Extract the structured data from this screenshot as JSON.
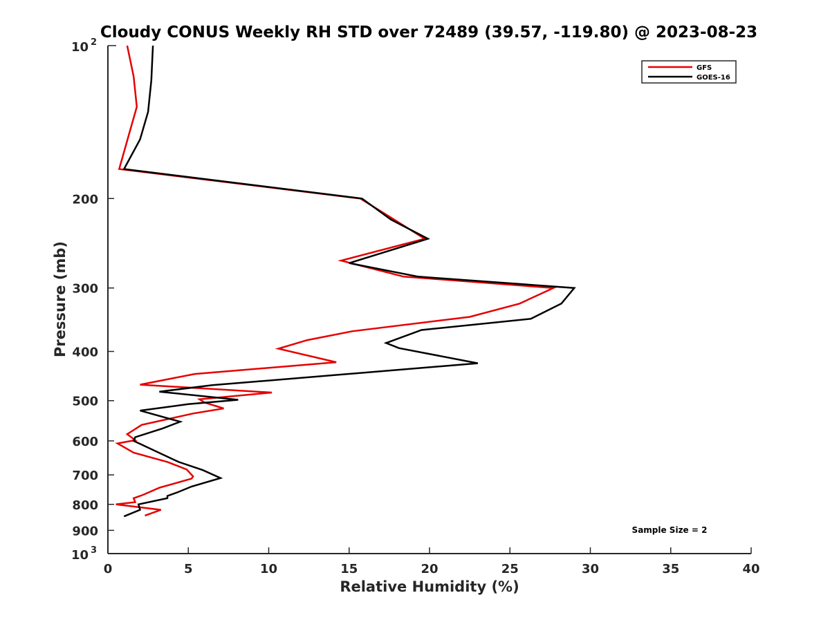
{
  "chart_data": {
    "type": "line",
    "title": "Cloudy CONUS Weekly RH STD over 72489 (39.57, -119.80) @ 2023-08-23",
    "xlabel": "Relative Humidity (%)",
    "ylabel": "Pressure (mb)",
    "xlim": [
      0,
      40
    ],
    "ylim": [
      100,
      1000
    ],
    "y_scale": "log",
    "y_reversed": true,
    "grid": false,
    "legend_position": "top-right",
    "x_ticks": [
      0,
      5,
      10,
      15,
      20,
      25,
      30,
      35,
      40
    ],
    "x_tick_labels": [
      "0",
      "5",
      "10",
      "15",
      "20",
      "25",
      "30",
      "35",
      "40"
    ],
    "y_ticks": [
      200,
      300,
      400,
      500,
      600,
      700,
      800,
      900
    ],
    "y_tick_labels": [
      "200",
      "300",
      "400",
      "500",
      "600",
      "700",
      "800",
      "900"
    ],
    "y_decade_ticks": [
      {
        "value": 100,
        "base": "10",
        "exp": "2"
      },
      {
        "value": 1000,
        "base": "10",
        "exp": "3"
      }
    ],
    "annotation": "Sample Size = 2",
    "series": [
      {
        "name": "GFS",
        "color": "#e60000",
        "points": [
          [
            1.2,
            100
          ],
          [
            1.6,
            115
          ],
          [
            1.8,
            132
          ],
          [
            1.3,
            150
          ],
          [
            0.7,
            175
          ],
          [
            15.7,
            200
          ],
          [
            17.6,
            218
          ],
          [
            19.7,
            240
          ],
          [
            14.5,
            265
          ],
          [
            18.4,
            285
          ],
          [
            27.7,
            300
          ],
          [
            25.6,
            322
          ],
          [
            22.5,
            342
          ],
          [
            15.2,
            365
          ],
          [
            12.4,
            380
          ],
          [
            10.6,
            395
          ],
          [
            14.2,
            420
          ],
          [
            5.4,
            443
          ],
          [
            2.0,
            465
          ],
          [
            10.2,
            482
          ],
          [
            5.7,
            497
          ],
          [
            6.0,
            504
          ],
          [
            7.2,
            518
          ],
          [
            5.3,
            530
          ],
          [
            2.1,
            558
          ],
          [
            1.2,
            582
          ],
          [
            1.7,
            598
          ],
          [
            0.6,
            607
          ],
          [
            1.6,
            633
          ],
          [
            3.7,
            660
          ],
          [
            4.9,
            683
          ],
          [
            5.3,
            705
          ],
          [
            5.2,
            712
          ],
          [
            3.2,
            742
          ],
          [
            2.2,
            766
          ],
          [
            1.6,
            778
          ],
          [
            1.7,
            792
          ],
          [
            0.5,
            800
          ],
          [
            3.3,
            820
          ],
          [
            2.3,
            842
          ]
        ]
      },
      {
        "name": "GOES-16",
        "color": "#000000",
        "points": [
          [
            2.8,
            100
          ],
          [
            2.7,
            117
          ],
          [
            2.5,
            135
          ],
          [
            2.0,
            153
          ],
          [
            1.0,
            175
          ],
          [
            15.8,
            200
          ],
          [
            17.6,
            220
          ],
          [
            19.9,
            240
          ],
          [
            15.0,
            268
          ],
          [
            19.3,
            285
          ],
          [
            29.0,
            300
          ],
          [
            28.2,
            322
          ],
          [
            26.3,
            345
          ],
          [
            19.5,
            363
          ],
          [
            17.3,
            385
          ],
          [
            18.1,
            394
          ],
          [
            23.0,
            422
          ],
          [
            6.5,
            466
          ],
          [
            3.2,
            480
          ],
          [
            8.1,
            498
          ],
          [
            5.0,
            508
          ],
          [
            2.0,
            523
          ],
          [
            4.5,
            550
          ],
          [
            3.4,
            567
          ],
          [
            1.7,
            590
          ],
          [
            1.6,
            600
          ],
          [
            2.8,
            625
          ],
          [
            4.4,
            660
          ],
          [
            5.9,
            685
          ],
          [
            7.0,
            710
          ],
          [
            5.2,
            738
          ],
          [
            4.3,
            758
          ],
          [
            3.7,
            770
          ],
          [
            3.7,
            778
          ],
          [
            1.9,
            800
          ],
          [
            2.0,
            820
          ],
          [
            1.0,
            845
          ]
        ]
      }
    ]
  }
}
